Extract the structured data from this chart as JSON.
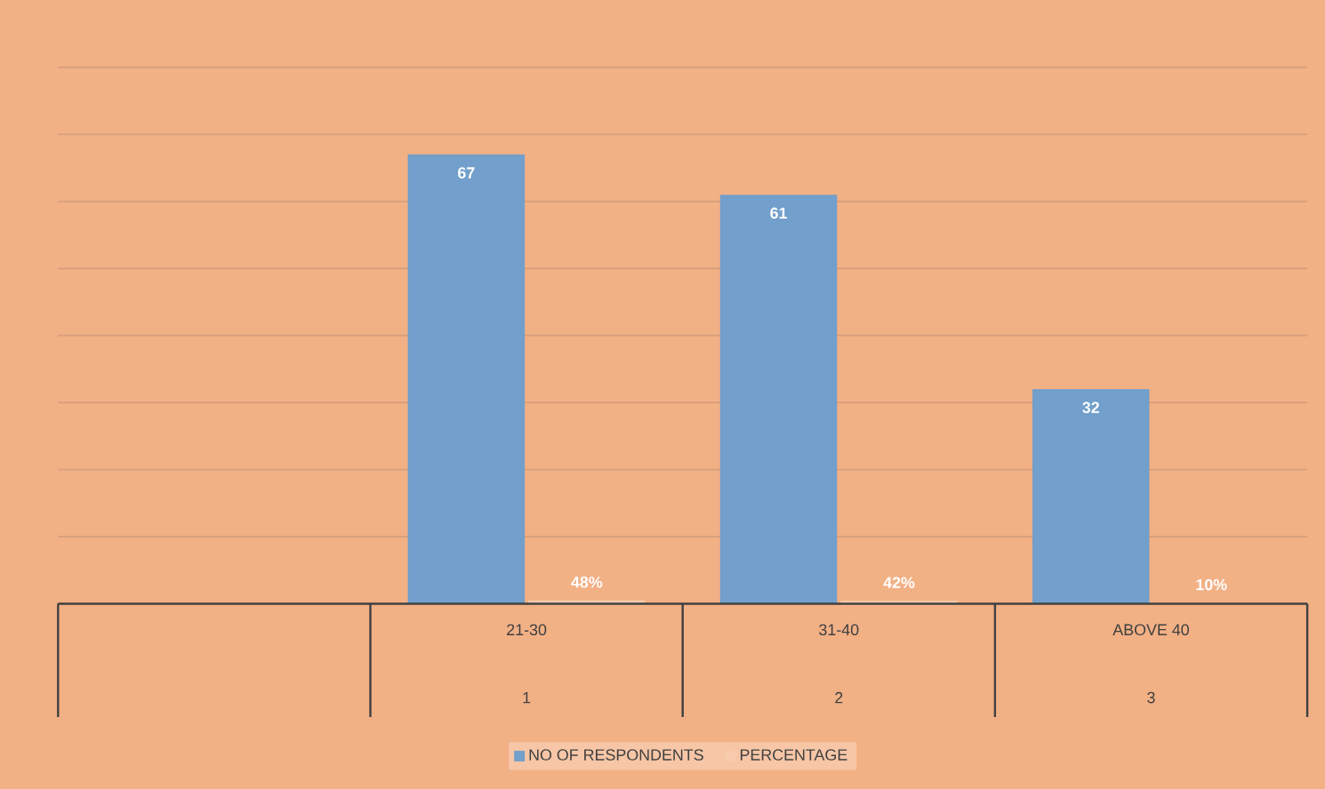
{
  "chart_data": {
    "type": "bar",
    "categories": [
      null,
      "21-30",
      "31-40",
      "ABOVE 40"
    ],
    "series": [
      {
        "name": "NO OF RESPONDENTS",
        "color": "#729fcb",
        "values": [
          null,
          67,
          61,
          32
        ],
        "value_labels": [
          null,
          "67",
          "61",
          "32"
        ]
      },
      {
        "name": "PERCENTAGE",
        "color": "#f8cbad",
        "values": [
          null,
          0.48,
          0.42,
          0.1
        ],
        "value_labels": [
          null,
          "48%",
          "42%",
          "10%"
        ]
      }
    ],
    "annotations": [
      "1",
      "2",
      "3"
    ],
    "ylim": [
      0,
      80
    ],
    "yticks": [
      {
        "value": 10,
        "label": null
      },
      {
        "value": 20,
        "label": null
      },
      {
        "value": 30,
        "label": null
      },
      {
        "value": 40,
        "label": null
      },
      {
        "value": 50,
        "label": null
      },
      {
        "value": 60,
        "label": null
      },
      {
        "value": 70,
        "label": null
      },
      {
        "value": 80,
        "label": null
      }
    ],
    "tick_labels": "x",
    "grid": "y",
    "legend": "bottom"
  }
}
